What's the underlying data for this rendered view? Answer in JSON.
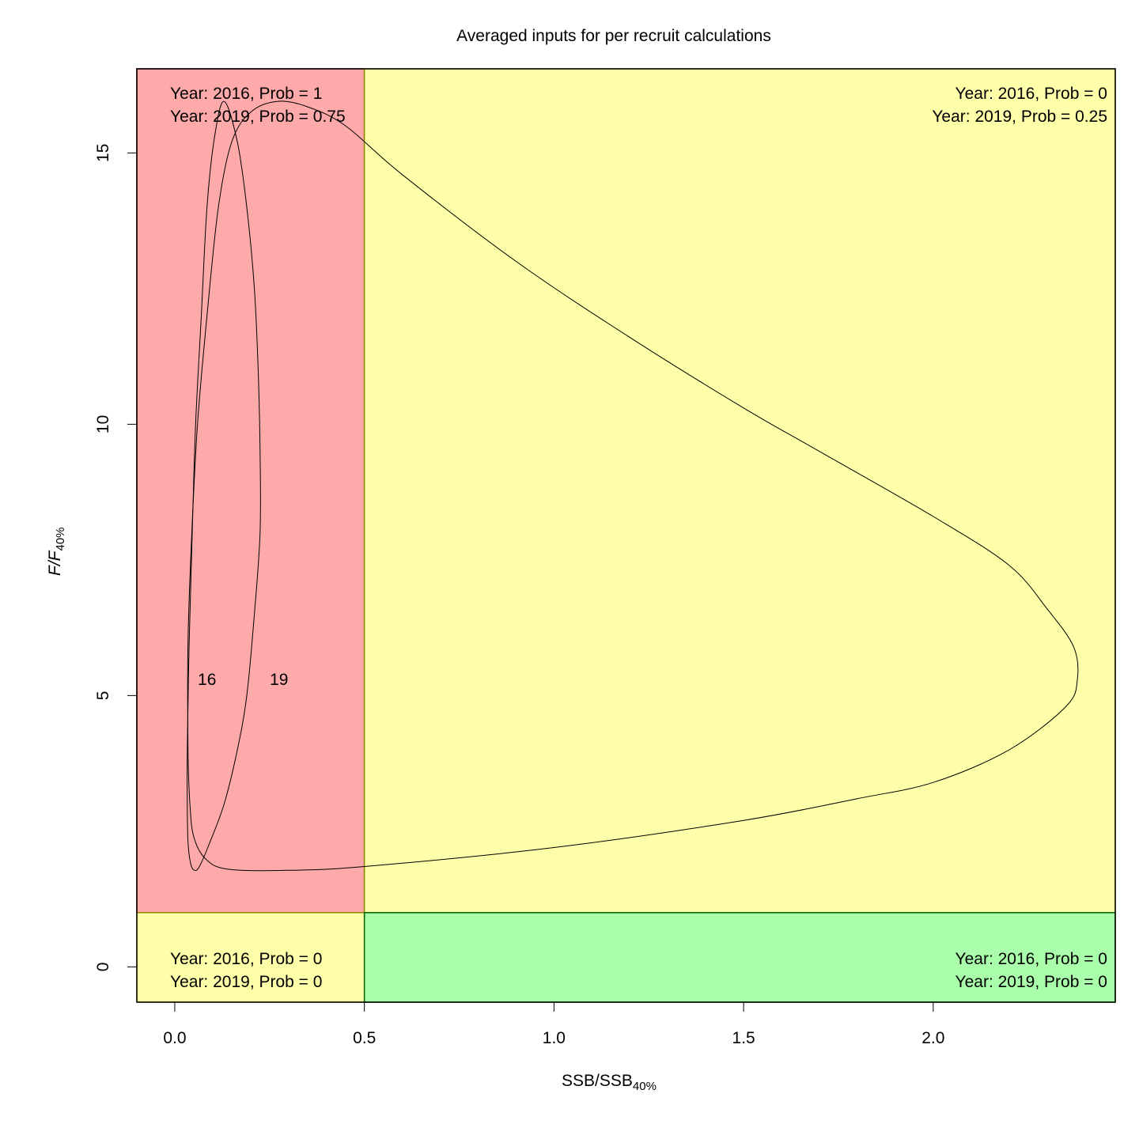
{
  "chart_data": {
    "type": "line",
    "title": "Averaged inputs for per recruit calculations",
    "xlabel": {
      "main": "SSB/SSB",
      "sub": "40%"
    },
    "ylabel": {
      "main": "F/F",
      "sub": "40%"
    },
    "xlim": [
      -0.1,
      2.48
    ],
    "ylim": [
      -0.65,
      16.55
    ],
    "xticks": [
      0.0,
      0.5,
      1.0,
      1.5,
      2.0
    ],
    "xtick_labels": [
      "0.0",
      "0.5",
      "1.0",
      "1.5",
      "2.0"
    ],
    "yticks": [
      0,
      5,
      10,
      15
    ],
    "ytick_labels": [
      "0",
      "5",
      "10",
      "15"
    ],
    "reference_lines": {
      "x": 0.5,
      "y": 1.0
    },
    "quadrants": [
      {
        "name": "overfished-overfishing",
        "color": "#ffaaaa",
        "border": "#8b0000",
        "x_range": [
          -0.1,
          0.5
        ],
        "y_range": [
          1.0,
          16.55
        ]
      },
      {
        "name": "healthy-overfishing",
        "color": "#ffffaa",
        "border": "#8b8b00",
        "x_range": [
          0.5,
          2.48
        ],
        "y_range": [
          1.0,
          16.55
        ]
      },
      {
        "name": "overfished-no-overfishing",
        "color": "#ffffaa",
        "border": "#8b8b00",
        "x_range": [
          -0.1,
          0.5
        ],
        "y_range": [
          -0.65,
          1.0
        ]
      },
      {
        "name": "healthy-no-overfishing",
        "color": "#aaffaa",
        "border": "#006400",
        "x_range": [
          0.5,
          2.48
        ],
        "y_range": [
          -0.65,
          1.0
        ]
      }
    ],
    "quadrant_labels": {
      "top_left": [
        "Year: 2016, Prob = 1",
        "Year: 2019, Prob = 0.75"
      ],
      "top_right": [
        "Year: 2016, Prob = 0",
        "Year: 2019, Prob = 0.25"
      ],
      "bottom_left": [
        "Year: 2016, Prob = 0",
        "Year: 2019, Prob = 0"
      ],
      "bottom_right": [
        "Year: 2016, Prob = 0",
        "Year: 2019, Prob = 0"
      ]
    },
    "series": [
      {
        "label": "16",
        "label_at": [
          0.085,
          5.3
        ],
        "points": [
          [
            0.13,
            15.95
          ],
          [
            0.105,
            15.3
          ],
          [
            0.085,
            14.0
          ],
          [
            0.07,
            12.0
          ],
          [
            0.055,
            10.0
          ],
          [
            0.046,
            8.0
          ],
          [
            0.038,
            6.0
          ],
          [
            0.033,
            4.0
          ],
          [
            0.033,
            3.0
          ],
          [
            0.035,
            2.3
          ],
          [
            0.042,
            1.9
          ],
          [
            0.052,
            1.78
          ],
          [
            0.065,
            1.85
          ],
          [
            0.09,
            2.25
          ],
          [
            0.13,
            3.0
          ],
          [
            0.165,
            4.0
          ],
          [
            0.19,
            5.0
          ],
          [
            0.21,
            6.5
          ],
          [
            0.225,
            8.0
          ],
          [
            0.225,
            9.5
          ],
          [
            0.22,
            11.0
          ],
          [
            0.21,
            12.5
          ],
          [
            0.19,
            14.0
          ],
          [
            0.165,
            15.2
          ],
          [
            0.13,
            15.95
          ]
        ]
      },
      {
        "label": "19",
        "label_at": [
          0.275,
          5.3
        ],
        "points": [
          [
            0.27,
            15.95
          ],
          [
            0.2,
            15.75
          ],
          [
            0.15,
            15.2
          ],
          [
            0.115,
            14.0
          ],
          [
            0.085,
            12.0
          ],
          [
            0.06,
            10.0
          ],
          [
            0.045,
            8.0
          ],
          [
            0.035,
            6.0
          ],
          [
            0.035,
            4.0
          ],
          [
            0.04,
            3.0
          ],
          [
            0.05,
            2.4
          ],
          [
            0.08,
            2.0
          ],
          [
            0.14,
            1.8
          ],
          [
            0.3,
            1.78
          ],
          [
            0.5,
            1.85
          ],
          [
            1.0,
            2.2
          ],
          [
            1.5,
            2.7
          ],
          [
            1.8,
            3.1
          ],
          [
            2.0,
            3.4
          ],
          [
            2.2,
            4.0
          ],
          [
            2.35,
            4.8
          ],
          [
            2.38,
            5.3
          ],
          [
            2.37,
            5.9
          ],
          [
            2.3,
            6.6
          ],
          [
            2.2,
            7.4
          ],
          [
            2.0,
            8.3
          ],
          [
            1.7,
            9.5
          ],
          [
            1.5,
            10.3
          ],
          [
            1.2,
            11.6
          ],
          [
            0.9,
            13.0
          ],
          [
            0.6,
            14.6
          ],
          [
            0.45,
            15.5
          ],
          [
            0.35,
            15.85
          ],
          [
            0.27,
            15.95
          ]
        ]
      }
    ]
  }
}
